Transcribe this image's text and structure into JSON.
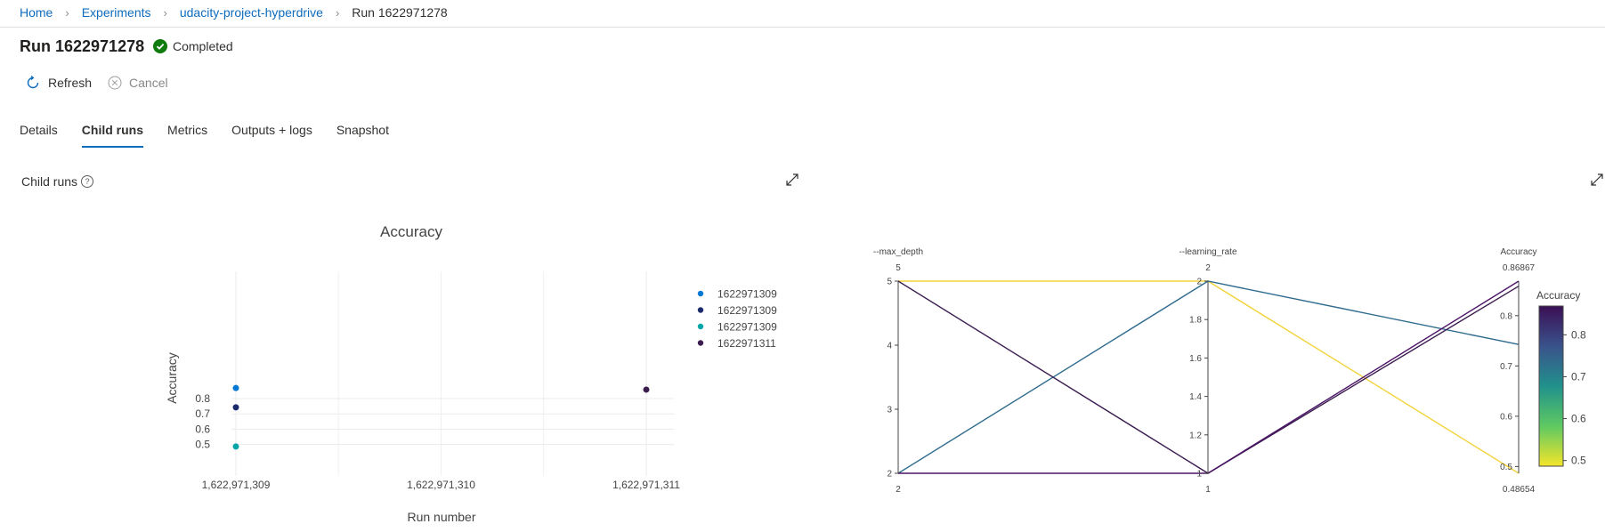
{
  "breadcrumb": {
    "items": [
      "Home",
      "Experiments",
      "udacity-project-hyperdrive"
    ],
    "current": "Run 1622971278"
  },
  "run": {
    "title": "Run 1622971278",
    "status": "Completed",
    "status_color": "#107c10"
  },
  "toolbar": {
    "refresh": "Refresh",
    "cancel": "Cancel"
  },
  "tabs": [
    "Details",
    "Child runs",
    "Metrics",
    "Outputs + logs",
    "Snapshot"
  ],
  "active_tab": "Child runs",
  "section": {
    "title": "Child runs",
    "help_icon": "?"
  },
  "chart_data": [
    {
      "type": "scatter",
      "title": "Accuracy",
      "xlabel": "Run number",
      "ylabel": "Accuracy",
      "xticks": [
        "1,622,971,309",
        "1,622,971,310",
        "1,622,971,311"
      ],
      "xlim": [
        1622971309,
        1622971311
      ],
      "yticks": [
        "0.5",
        "0.6",
        "0.7",
        "0.8"
      ],
      "ylim": [
        0.48,
        0.87
      ],
      "series": [
        {
          "name": "1622971309",
          "color": "#0078d4",
          "points": [
            [
              1622971309,
              0.8687
            ]
          ]
        },
        {
          "name": "1622971309",
          "color": "#1b2a6b",
          "points": [
            [
              1622971309,
              0.7427
            ]
          ]
        },
        {
          "name": "1622971309",
          "color": "#00a5a8",
          "points": [
            [
              1622971309,
              0.4865
            ]
          ]
        },
        {
          "name": "1622971311",
          "color": "#3b1d4f",
          "points": [
            [
              1622971311,
              0.8585
            ]
          ]
        }
      ],
      "legend_position": "right",
      "grid": true
    },
    {
      "type": "parallel_coordinates",
      "axes": [
        {
          "name": "--max_depth",
          "min": 2,
          "max": 5,
          "top_label": "5",
          "bottom_label": "2",
          "ticks": [
            "5",
            "4",
            "3",
            "2"
          ]
        },
        {
          "name": "--learning_rate",
          "min": 1,
          "max": 2,
          "top_label": "2",
          "bottom_label": "1",
          "ticks": [
            "2",
            "1.8",
            "1.6",
            "1.4",
            "1.2",
            "1"
          ]
        },
        {
          "name": "Accuracy",
          "min": 0.48654,
          "max": 0.86867,
          "top_label": "0.86867",
          "bottom_label": "0.48654",
          "ticks": [
            "0.8",
            "0.7",
            "0.6",
            "0.5"
          ]
        }
      ],
      "lines": [
        {
          "values": [
            5,
            2,
            0.48654
          ],
          "color": "#f2d33a"
        },
        {
          "values": [
            2,
            2,
            0.7427
          ],
          "color": "#2f6b8e"
        },
        {
          "values": [
            5,
            1,
            0.8585
          ],
          "color": "#3b1d4f"
        },
        {
          "values": [
            2,
            1,
            0.86867
          ],
          "color": "#4b1466"
        }
      ],
      "colorbar": {
        "title": "Accuracy",
        "ticks": [
          "0.8",
          "0.7",
          "0.6",
          "0.5"
        ],
        "min": 0.48654,
        "max": 0.86867
      }
    }
  ]
}
